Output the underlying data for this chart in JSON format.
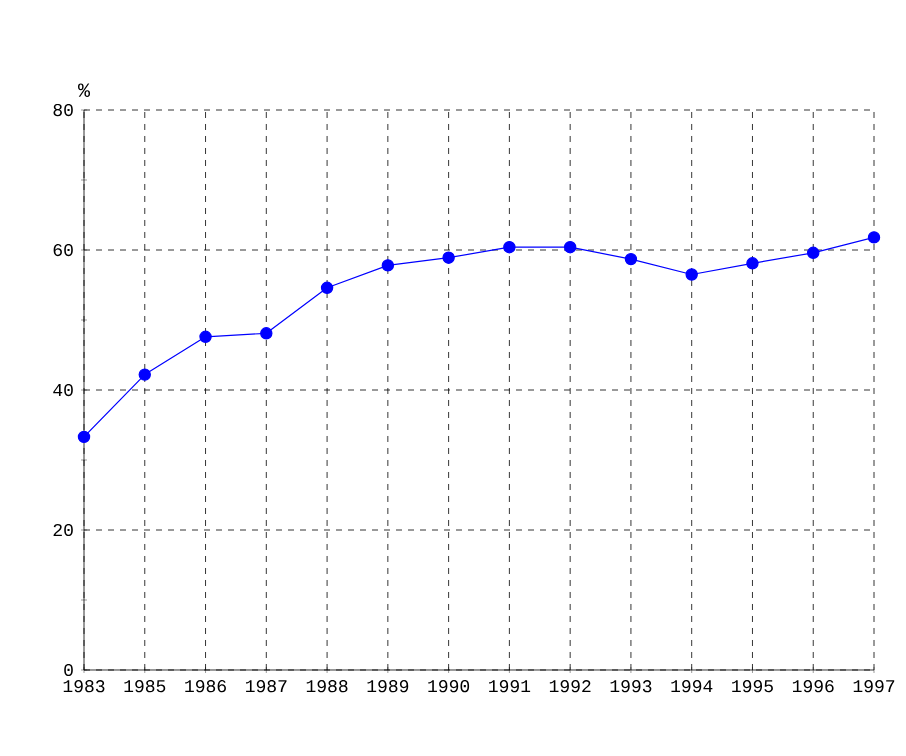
{
  "chart_data": {
    "type": "line",
    "ylabel": "%",
    "categories": [
      "1983",
      "1985",
      "1986",
      "1987",
      "1988",
      "1989",
      "1990",
      "1991",
      "1992",
      "1993",
      "1994",
      "1995",
      "1996",
      "1997"
    ],
    "series": [
      {
        "color": "#0000ff",
        "values": [
          33.3,
          42.2,
          47.6,
          48.1,
          54.6,
          57.8,
          58.9,
          60.4,
          60.4,
          58.7,
          56.5,
          58.1,
          59.6,
          61.8
        ]
      }
    ],
    "ylim": [
      0,
      80
    ],
    "yticks": [
      0,
      20,
      40,
      60,
      80
    ],
    "grid": true,
    "marker": "circle",
    "line_style": "solid"
  }
}
